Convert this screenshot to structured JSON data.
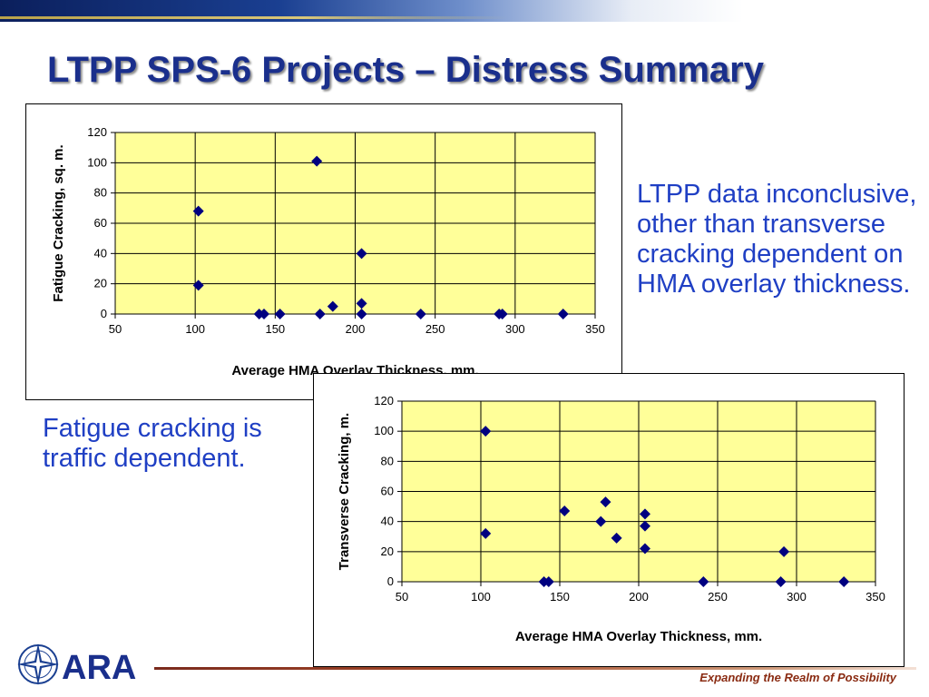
{
  "slide": {
    "title": "LTPP SPS-6 Projects – Distress Summary",
    "bullet_right": "LTPP data inconclusive, other than transverse cracking dependent on HMA overlay thickness.",
    "bullet_left": "Fatigue cracking is traffic dependent.",
    "logo_text": "ARA",
    "tagline": "Expanding the Realm of Possibility"
  },
  "colors": {
    "title": "#1a2f8c",
    "bullet": "#1f3fc4",
    "plot_background": "#ffff99",
    "marker": "#000080",
    "tagline": "#8a2b12"
  },
  "chart_data": [
    {
      "type": "scatter",
      "title": "",
      "xlabel": "Average HMA Overlay Thickness, mm.",
      "ylabel": "Fatigue Cracking, sq. m.",
      "xlim": [
        50,
        350
      ],
      "ylim": [
        0,
        120
      ],
      "xticks": [
        50,
        100,
        150,
        200,
        250,
        300,
        350
      ],
      "yticks": [
        0,
        20,
        40,
        60,
        80,
        100,
        120
      ],
      "grid": true,
      "marker": "diamond",
      "points": [
        {
          "x": 102,
          "y": 68
        },
        {
          "x": 102,
          "y": 19
        },
        {
          "x": 176,
          "y": 101
        },
        {
          "x": 204,
          "y": 40
        },
        {
          "x": 204,
          "y": 7
        },
        {
          "x": 204,
          "y": 0
        },
        {
          "x": 186,
          "y": 5
        },
        {
          "x": 178,
          "y": 0
        },
        {
          "x": 140,
          "y": 0
        },
        {
          "x": 143,
          "y": 0
        },
        {
          "x": 153,
          "y": 0
        },
        {
          "x": 241,
          "y": 0
        },
        {
          "x": 290,
          "y": 0
        },
        {
          "x": 292,
          "y": 0
        },
        {
          "x": 330,
          "y": 0
        }
      ]
    },
    {
      "type": "scatter",
      "title": "",
      "xlabel": "Average HMA Overlay Thickness, mm.",
      "ylabel": "Transverse Cracking, m.",
      "xlim": [
        50,
        350
      ],
      "ylim": [
        0,
        120
      ],
      "xticks": [
        50,
        100,
        150,
        200,
        250,
        300,
        350
      ],
      "yticks": [
        0,
        20,
        40,
        60,
        80,
        100,
        120
      ],
      "grid": true,
      "marker": "diamond",
      "points": [
        {
          "x": 103,
          "y": 100
        },
        {
          "x": 103,
          "y": 32
        },
        {
          "x": 140,
          "y": 0
        },
        {
          "x": 143,
          "y": 0
        },
        {
          "x": 153,
          "y": 47
        },
        {
          "x": 176,
          "y": 40
        },
        {
          "x": 179,
          "y": 53
        },
        {
          "x": 186,
          "y": 29
        },
        {
          "x": 204,
          "y": 45
        },
        {
          "x": 204,
          "y": 37
        },
        {
          "x": 204,
          "y": 22
        },
        {
          "x": 241,
          "y": 0
        },
        {
          "x": 290,
          "y": 0
        },
        {
          "x": 292,
          "y": 20
        },
        {
          "x": 330,
          "y": 0
        }
      ]
    }
  ]
}
